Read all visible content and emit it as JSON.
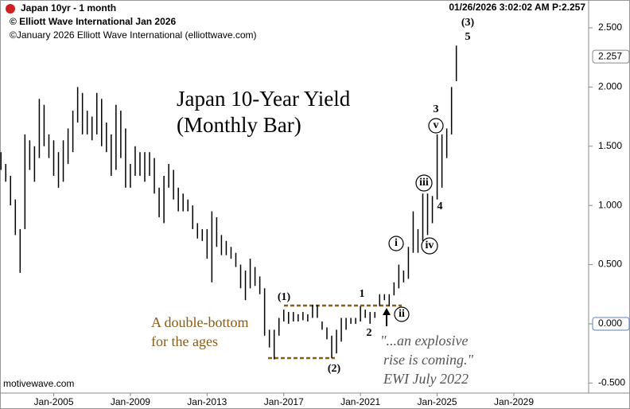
{
  "header": {
    "symbol": "Japan 10yr - 1 month",
    "copyright1": "© Elliott Wave International Jan 2026",
    "copyright2": "©January 2026   Elliott Wave International   (elliottwave.com)",
    "timestamp": "01/26/2026 3:02:02 AM  P:2.257",
    "footer": "motivewave.com"
  },
  "chart_data": {
    "type": "range_bar",
    "title": "Japan 10-Year Yield",
    "subtitle": "(Monthly Bar)",
    "color": "#000000",
    "x": [
      2002.25,
      2002.5,
      2002.75,
      2003.0,
      2003.25,
      2003.5,
      2003.75,
      2004.0,
      2004.25,
      2004.5,
      2004.75,
      2005.0,
      2005.25,
      2005.5,
      2005.75,
      2006.0,
      2006.25,
      2006.5,
      2006.75,
      2007.0,
      2007.25,
      2007.5,
      2007.75,
      2008.0,
      2008.25,
      2008.5,
      2008.75,
      2009.0,
      2009.25,
      2009.5,
      2009.75,
      2010.0,
      2010.25,
      2010.5,
      2010.75,
      2011.0,
      2011.25,
      2011.5,
      2011.75,
      2012.0,
      2012.25,
      2012.5,
      2012.75,
      2013.0,
      2013.25,
      2013.5,
      2013.75,
      2014.0,
      2014.25,
      2014.5,
      2014.75,
      2015.0,
      2015.25,
      2015.5,
      2015.75,
      2016.0,
      2016.25,
      2016.5,
      2016.75,
      2017.0,
      2017.25,
      2017.5,
      2017.75,
      2018.0,
      2018.25,
      2018.5,
      2018.75,
      2019.0,
      2019.25,
      2019.5,
      2019.75,
      2020.0,
      2020.25,
      2020.5,
      2020.75,
      2021.0,
      2021.25,
      2021.5,
      2021.75,
      2022.0,
      2022.25,
      2022.5,
      2022.75,
      2023.0,
      2023.25,
      2023.5,
      2023.75,
      2024.0,
      2024.25,
      2024.5,
      2024.75,
      2025.0,
      2025.25,
      2025.5,
      2025.75,
      2026.0
    ],
    "high": [
      1.45,
      1.35,
      1.25,
      1.05,
      0.8,
      1.6,
      1.55,
      1.5,
      1.9,
      1.85,
      1.6,
      1.55,
      1.45,
      1.55,
      1.65,
      1.8,
      2.0,
      1.95,
      1.8,
      1.75,
      1.95,
      1.9,
      1.7,
      1.6,
      1.85,
      1.8,
      1.65,
      1.35,
      1.5,
      1.45,
      1.45,
      1.45,
      1.4,
      1.15,
      1.25,
      1.35,
      1.3,
      1.15,
      1.1,
      1.05,
      1.0,
      0.85,
      0.8,
      0.8,
      0.95,
      0.9,
      0.75,
      0.7,
      0.65,
      0.6,
      0.5,
      0.45,
      0.55,
      0.48,
      0.4,
      0.3,
      -0.05,
      -0.05,
      0.05,
      0.12,
      0.1,
      0.1,
      0.08,
      0.1,
      0.08,
      0.16,
      0.16,
      0.02,
      -0.03,
      -0.1,
      -0.05,
      0.05,
      0.05,
      0.05,
      0.05,
      0.15,
      0.12,
      0.1,
      0.1,
      0.25,
      0.25,
      0.25,
      0.35,
      0.5,
      0.45,
      0.65,
      0.95,
      0.8,
      1.1,
      1.1,
      1.08,
      1.6,
      1.6,
      1.65,
      2.0,
      2.35
    ],
    "low": [
      1.3,
      1.2,
      1.0,
      0.75,
      0.43,
      0.8,
      1.3,
      1.2,
      1.4,
      1.5,
      1.4,
      1.25,
      1.15,
      1.2,
      1.35,
      1.45,
      1.7,
      1.6,
      1.6,
      1.55,
      1.6,
      1.5,
      1.45,
      1.25,
      1.3,
      1.4,
      1.15,
      1.15,
      1.25,
      1.25,
      1.2,
      1.25,
      1.1,
      0.9,
      0.85,
      1.15,
      1.05,
      0.95,
      0.95,
      0.95,
      0.8,
      0.72,
      0.7,
      0.55,
      0.35,
      0.65,
      0.58,
      0.58,
      0.55,
      0.48,
      0.3,
      0.2,
      0.3,
      0.32,
      0.25,
      -0.1,
      -0.2,
      -0.3,
      -0.1,
      0.02,
      0.0,
      0.02,
      0.02,
      0.03,
      0.02,
      0.05,
      0.05,
      -0.05,
      -0.13,
      -0.29,
      -0.25,
      -0.15,
      -0.05,
      0.0,
      0.0,
      0.02,
      0.05,
      0.0,
      0.05,
      0.15,
      0.2,
      0.15,
      0.24,
      0.3,
      0.35,
      0.38,
      0.6,
      0.6,
      0.7,
      0.75,
      0.85,
      1.05,
      1.15,
      1.4,
      1.6,
      2.05
    ],
    "last_price": 2.257,
    "xlim": [
      2002.2,
      2032.9
    ],
    "xticks": [
      {
        "value": 2005,
        "label": "Jan-2005"
      },
      {
        "value": 2009,
        "label": "Jan-2009"
      },
      {
        "value": 2013,
        "label": "Jan-2013"
      },
      {
        "value": 2017,
        "label": "Jan-2017"
      },
      {
        "value": 2021,
        "label": "Jan-2021"
      },
      {
        "value": 2025,
        "label": "Jan-2025"
      },
      {
        "value": 2029,
        "label": "Jan-2029"
      }
    ],
    "ylim": [
      -0.585,
      2.735
    ],
    "yticks": [
      {
        "value": -0.5,
        "label": "-0.500"
      },
      {
        "value": 0,
        "label": "0.000"
      },
      {
        "value": 0.5,
        "label": "0.500"
      },
      {
        "value": 1,
        "label": "1.000"
      },
      {
        "value": 1.5,
        "label": "1.500"
      },
      {
        "value": 2,
        "label": "2.000"
      },
      {
        "value": 2.5,
        "label": "2.500"
      }
    ],
    "annotations": {
      "wave_3_major": "(3)",
      "wave_5": "5",
      "wave_3": "3",
      "wave_v": "v",
      "wave_iii": "iii",
      "wave_4": "4",
      "wave_iv": "iv",
      "wave_i": "i",
      "wave_ii": "ii",
      "wave_1": "1",
      "wave_2": "2",
      "wave_1_major": "(1)",
      "wave_2_major": "(2)",
      "note_line1": "A double-bottom",
      "note_line2": "for the ages",
      "quote_line1": "\"...an explosive",
      "quote_line2": "rise is coming.\"",
      "quote_line3": "EWI July 2022"
    }
  }
}
